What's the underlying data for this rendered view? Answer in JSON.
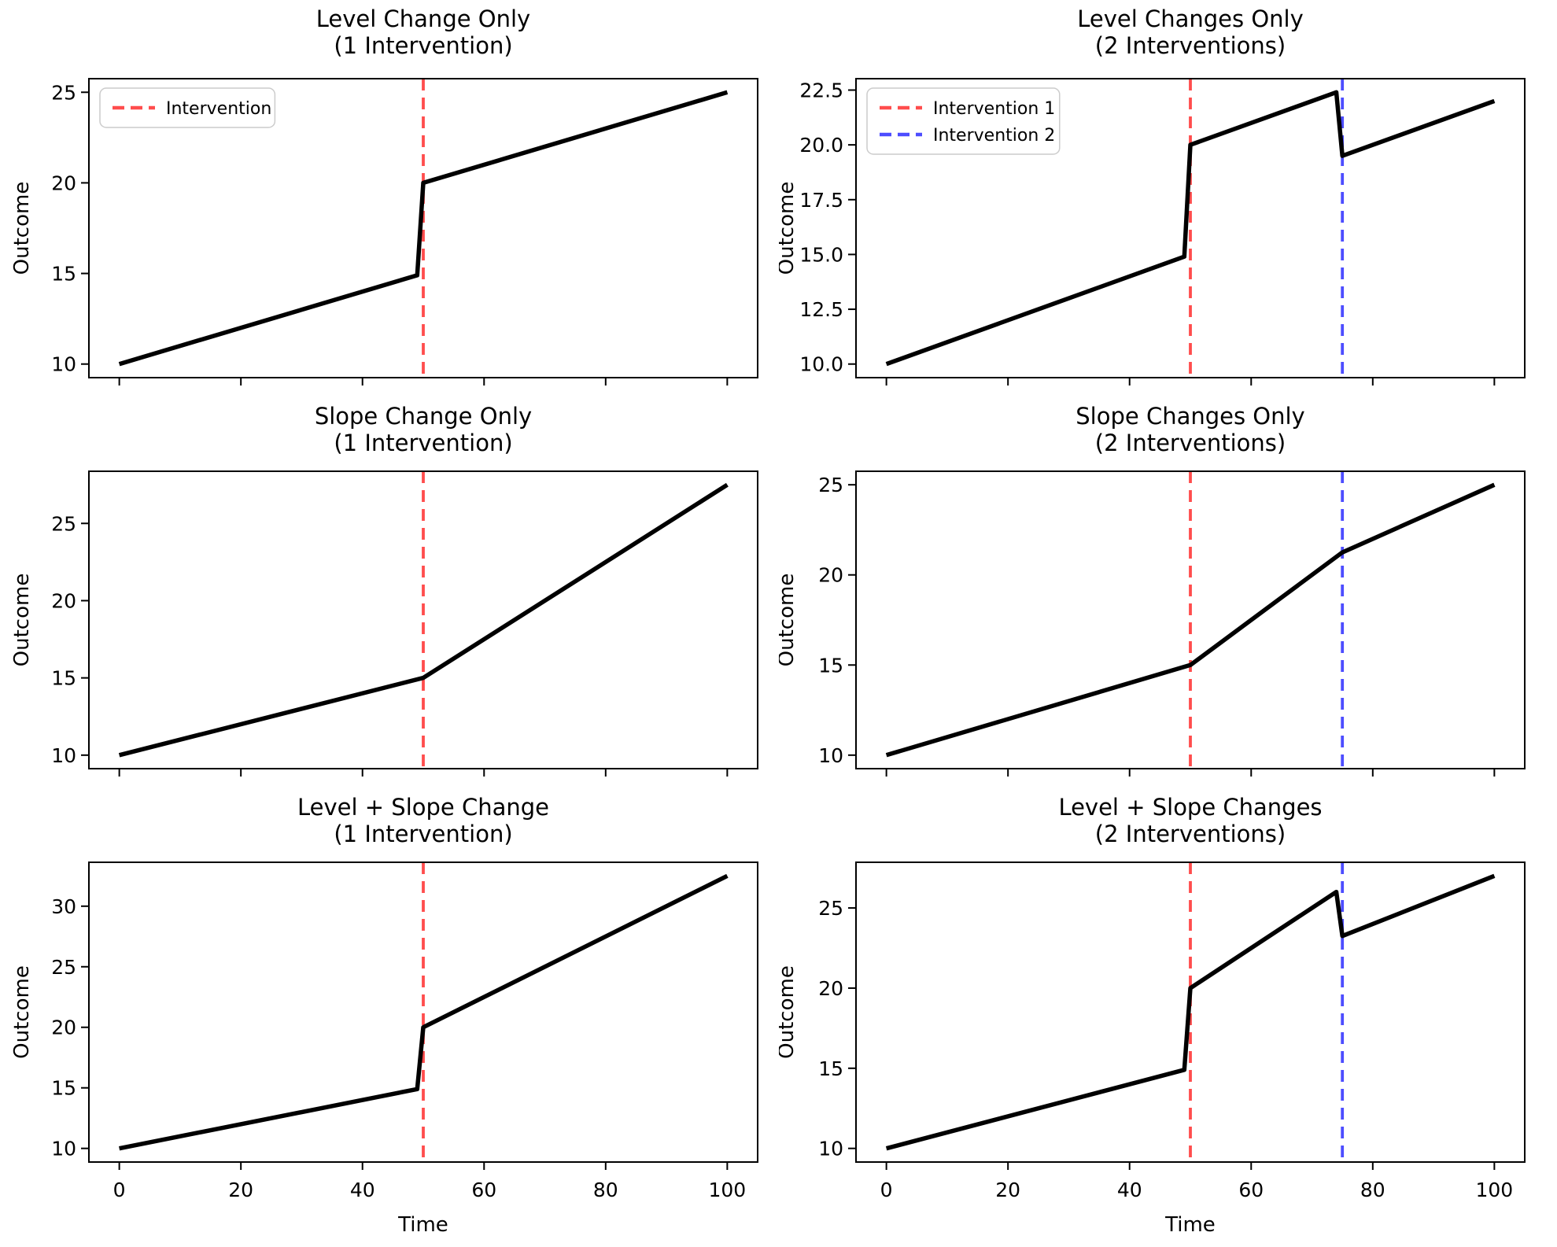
{
  "figure": {
    "background": "#ffffff",
    "xlabel": "Time",
    "ylabel": "Outcome",
    "colors": {
      "data_line": "#000000",
      "intervention1": "#ff4d4d",
      "intervention2": "#4d4dff",
      "legend_border": "#cccccc",
      "legend_background": "#ffffff"
    }
  },
  "chart_data": [
    {
      "type": "line",
      "id": "level-change-1",
      "title_line1": "Level Change Only",
      "title_line2": "(1 Intervention)",
      "ylabel": "Outcome",
      "xlabel": "",
      "show_xtick_labels": false,
      "xlim": [
        -5,
        105
      ],
      "ylim": [
        9.25,
        25.75
      ],
      "xticks": [
        0,
        20,
        40,
        60,
        80,
        100
      ],
      "xtick_labels": [
        "0",
        "20",
        "40",
        "60",
        "80",
        "100"
      ],
      "yticks": [
        10,
        15,
        20,
        25
      ],
      "ytick_labels": [
        "10",
        "15",
        "20",
        "25"
      ],
      "series": [
        {
          "name": "outcome",
          "color": "#000000",
          "points": [
            [
              0,
              10
            ],
            [
              49,
              14.9
            ],
            [
              50,
              20
            ],
            [
              100,
              25
            ]
          ]
        }
      ],
      "interventions": [
        {
          "x": 50,
          "color": "#ff4d4d",
          "label": "Intervention"
        }
      ],
      "legend": {
        "show": true,
        "entries": [
          {
            "label": "Intervention",
            "color": "#ff4d4d"
          }
        ]
      }
    },
    {
      "type": "line",
      "id": "level-changes-2",
      "title_line1": "Level Changes Only",
      "title_line2": "(2 Interventions)",
      "ylabel": "Outcome",
      "xlabel": "",
      "show_xtick_labels": false,
      "xlim": [
        -5,
        105
      ],
      "ylim": [
        9.38,
        23.02
      ],
      "xticks": [
        0,
        20,
        40,
        60,
        80,
        100
      ],
      "xtick_labels": [
        "0",
        "20",
        "40",
        "60",
        "80",
        "100"
      ],
      "yticks": [
        10,
        12.5,
        15,
        17.5,
        20,
        22.5
      ],
      "ytick_labels": [
        "10.0",
        "12.5",
        "15.0",
        "17.5",
        "20.0",
        "22.5"
      ],
      "series": [
        {
          "name": "outcome",
          "color": "#000000",
          "points": [
            [
              0,
              10
            ],
            [
              49,
              14.9
            ],
            [
              50,
              20
            ],
            [
              74,
              22.4
            ],
            [
              75,
              19.5
            ],
            [
              100,
              22
            ]
          ]
        }
      ],
      "interventions": [
        {
          "x": 50,
          "color": "#ff4d4d",
          "label": "Intervention 1"
        },
        {
          "x": 75,
          "color": "#4d4dff",
          "label": "Intervention 2"
        }
      ],
      "legend": {
        "show": true,
        "entries": [
          {
            "label": "Intervention 1",
            "color": "#ff4d4d"
          },
          {
            "label": "Intervention 2",
            "color": "#4d4dff"
          }
        ]
      }
    },
    {
      "type": "line",
      "id": "slope-change-1",
      "title_line1": "Slope Change Only",
      "title_line2": "(1 Intervention)",
      "ylabel": "Outcome",
      "xlabel": "",
      "show_xtick_labels": false,
      "xlim": [
        -5,
        105
      ],
      "ylim": [
        9.125,
        28.375
      ],
      "xticks": [
        0,
        20,
        40,
        60,
        80,
        100
      ],
      "xtick_labels": [
        "0",
        "20",
        "40",
        "60",
        "80",
        "100"
      ],
      "yticks": [
        10,
        15,
        20,
        25
      ],
      "ytick_labels": [
        "10",
        "15",
        "20",
        "25"
      ],
      "series": [
        {
          "name": "outcome",
          "color": "#000000",
          "points": [
            [
              0,
              10
            ],
            [
              50,
              15
            ],
            [
              100,
              27.5
            ]
          ]
        }
      ],
      "interventions": [
        {
          "x": 50,
          "color": "#ff4d4d",
          "label": "Intervention"
        }
      ],
      "legend": {
        "show": false,
        "entries": []
      }
    },
    {
      "type": "line",
      "id": "slope-changes-2",
      "title_line1": "Slope Changes Only",
      "title_line2": "(2 Interventions)",
      "ylabel": "Outcome",
      "xlabel": "",
      "show_xtick_labels": false,
      "xlim": [
        -5,
        105
      ],
      "ylim": [
        9.25,
        25.75
      ],
      "xticks": [
        0,
        20,
        40,
        60,
        80,
        100
      ],
      "xtick_labels": [
        "0",
        "20",
        "40",
        "60",
        "80",
        "100"
      ],
      "yticks": [
        10,
        15,
        20,
        25
      ],
      "ytick_labels": [
        "10",
        "15",
        "20",
        "25"
      ],
      "series": [
        {
          "name": "outcome",
          "color": "#000000",
          "points": [
            [
              0,
              10
            ],
            [
              50,
              15
            ],
            [
              75,
              21.25
            ],
            [
              100,
              25
            ]
          ]
        }
      ],
      "interventions": [
        {
          "x": 50,
          "color": "#ff4d4d",
          "label": "Intervention 1"
        },
        {
          "x": 75,
          "color": "#4d4dff",
          "label": "Intervention 2"
        }
      ],
      "legend": {
        "show": false,
        "entries": []
      }
    },
    {
      "type": "line",
      "id": "level-slope-change-1",
      "title_line1": "Level + Slope Change",
      "title_line2": "(1 Intervention)",
      "ylabel": "Outcome",
      "xlabel": "Time",
      "show_xtick_labels": true,
      "xlim": [
        -5,
        105
      ],
      "ylim": [
        8.875,
        33.625
      ],
      "xticks": [
        0,
        20,
        40,
        60,
        80,
        100
      ],
      "xtick_labels": [
        "0",
        "20",
        "40",
        "60",
        "80",
        "100"
      ],
      "yticks": [
        10,
        15,
        20,
        25,
        30
      ],
      "ytick_labels": [
        "10",
        "15",
        "20",
        "25",
        "30"
      ],
      "series": [
        {
          "name": "outcome",
          "color": "#000000",
          "points": [
            [
              0,
              10
            ],
            [
              49,
              14.9
            ],
            [
              50,
              20
            ],
            [
              100,
              32.5
            ]
          ]
        }
      ],
      "interventions": [
        {
          "x": 50,
          "color": "#ff4d4d",
          "label": "Intervention"
        }
      ],
      "legend": {
        "show": false,
        "entries": []
      }
    },
    {
      "type": "line",
      "id": "level-slope-changes-2",
      "title_line1": "Level + Slope Changes",
      "title_line2": "(2 Interventions)",
      "ylabel": "Outcome",
      "xlabel": "Time",
      "show_xtick_labels": true,
      "xlim": [
        -5,
        105
      ],
      "ylim": [
        9.15,
        27.85
      ],
      "xticks": [
        0,
        20,
        40,
        60,
        80,
        100
      ],
      "xtick_labels": [
        "0",
        "20",
        "40",
        "60",
        "80",
        "100"
      ],
      "yticks": [
        10,
        15,
        20,
        25
      ],
      "ytick_labels": [
        "10",
        "15",
        "20",
        "25"
      ],
      "series": [
        {
          "name": "outcome",
          "color": "#000000",
          "points": [
            [
              0,
              10
            ],
            [
              49,
              14.9
            ],
            [
              50,
              20
            ],
            [
              74,
              26
            ],
            [
              75,
              23.25
            ],
            [
              100,
              27
            ]
          ]
        }
      ],
      "interventions": [
        {
          "x": 50,
          "color": "#ff4d4d",
          "label": "Intervention 1"
        },
        {
          "x": 75,
          "color": "#4d4dff",
          "label": "Intervention 2"
        }
      ],
      "legend": {
        "show": false,
        "entries": []
      }
    }
  ]
}
